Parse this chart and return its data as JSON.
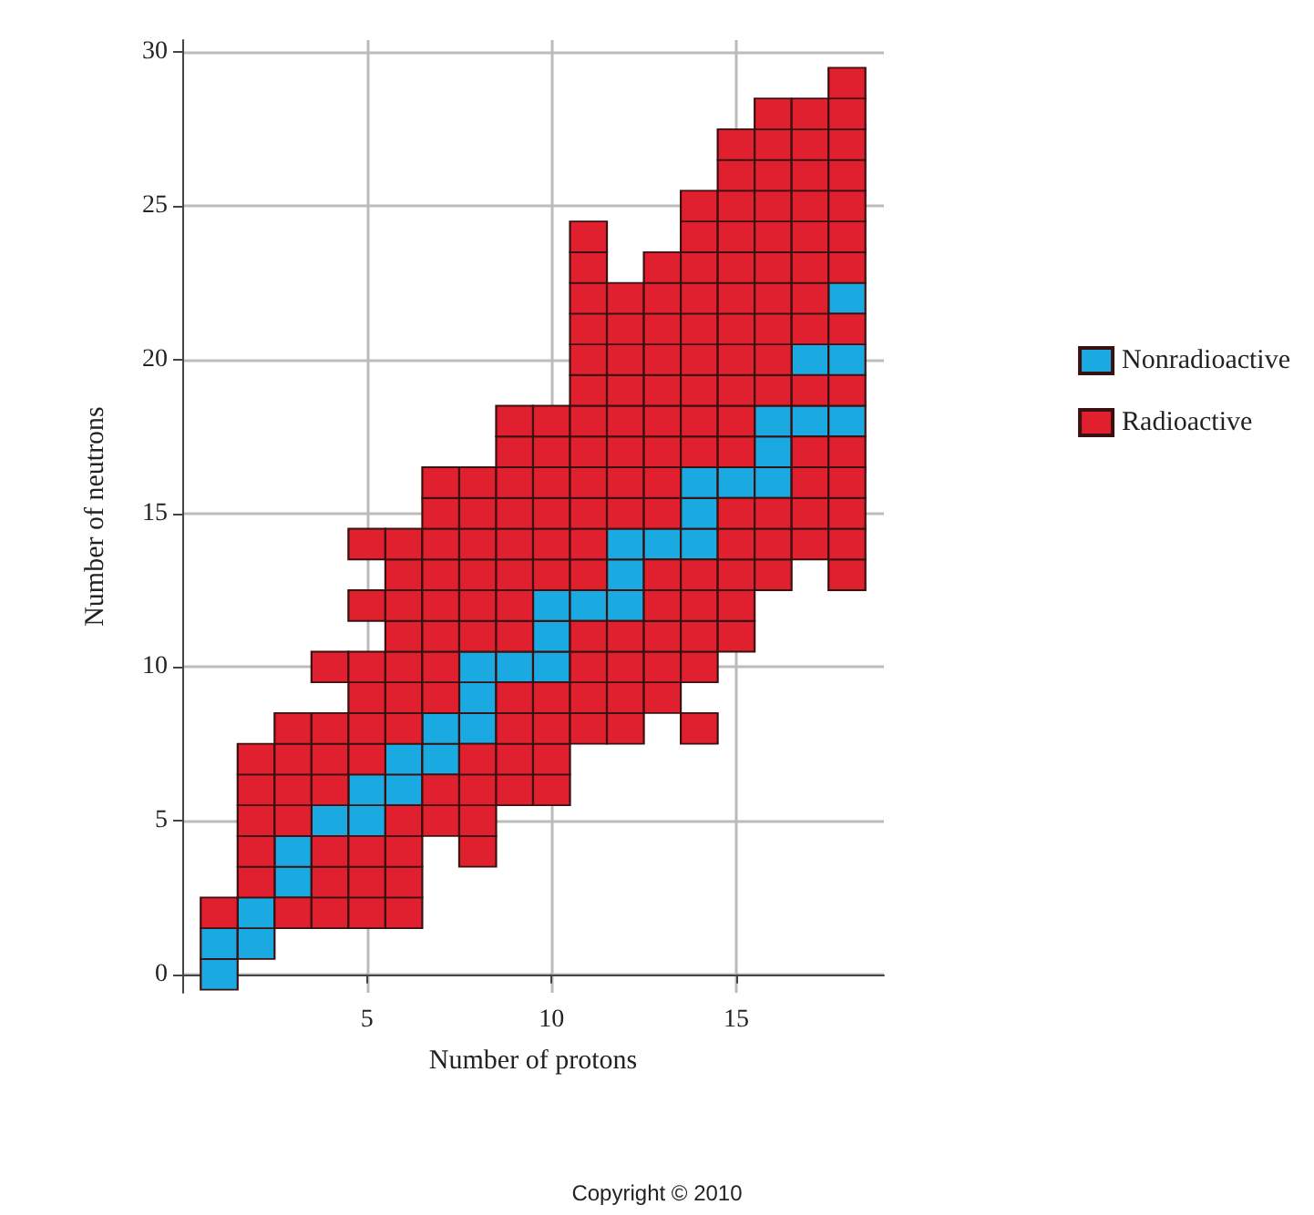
{
  "chart_data": {
    "type": "scatter",
    "xlabel": "Number of protons",
    "ylabel": "Number of neutrons",
    "xlim": [
      0,
      19
    ],
    "ylim": [
      -0.6,
      30.4
    ],
    "xticks": [
      5,
      10,
      15
    ],
    "yticks": [
      0,
      5,
      10,
      15,
      20,
      25,
      30
    ],
    "grid": true,
    "legend": "right",
    "marker": "square",
    "annotations": [
      "Copyright © 2010"
    ],
    "series": [
      {
        "name": "Nonradioactive",
        "color": "#1aa9e0",
        "x": [
          1,
          1,
          2,
          2,
          3,
          3,
          4,
          5,
          5,
          6,
          6,
          7,
          7,
          8,
          8,
          8,
          9,
          10,
          10,
          10,
          11,
          12,
          12,
          12,
          13,
          14,
          14,
          14,
          15,
          16,
          16,
          16,
          17,
          17,
          18,
          18,
          18
        ],
        "values": [
          0,
          1,
          1,
          2,
          3,
          4,
          5,
          5,
          6,
          6,
          7,
          7,
          8,
          8,
          9,
          10,
          10,
          10,
          11,
          12,
          12,
          12,
          13,
          14,
          14,
          14,
          15,
          16,
          16,
          16,
          17,
          18,
          18,
          20,
          18,
          20,
          22
        ]
      },
      {
        "name": "Radioactive",
        "color": "#e0202e",
        "x": [
          1,
          2,
          2,
          2,
          2,
          2,
          3,
          3,
          3,
          3,
          3,
          4,
          4,
          4,
          4,
          4,
          4,
          4,
          5,
          5,
          5,
          5,
          5,
          5,
          5,
          5,
          5,
          6,
          6,
          6,
          6,
          6,
          6,
          6,
          6,
          6,
          6,
          6,
          7,
          7,
          7,
          7,
          7,
          7,
          7,
          7,
          7,
          7,
          8,
          8,
          8,
          8,
          8,
          8,
          8,
          8,
          8,
          8,
          9,
          9,
          9,
          9,
          9,
          9,
          9,
          9,
          9,
          9,
          9,
          9,
          10,
          10,
          10,
          10,
          10,
          10,
          10,
          10,
          10,
          10,
          11,
          11,
          11,
          11,
          11,
          11,
          11,
          11,
          11,
          11,
          11,
          11,
          11,
          11,
          11,
          11,
          12,
          12,
          12,
          12,
          12,
          12,
          12,
          12,
          12,
          12,
          12,
          12,
          13,
          13,
          13,
          13,
          13,
          13,
          13,
          13,
          13,
          13,
          13,
          13,
          13,
          13,
          14,
          14,
          14,
          14,
          14,
          14,
          14,
          14,
          14,
          14,
          14,
          14,
          14,
          14,
          15,
          15,
          15,
          15,
          15,
          15,
          15,
          15,
          15,
          15,
          15,
          15,
          15,
          15,
          15,
          15,
          16,
          16,
          16,
          16,
          16,
          16,
          16,
          16,
          16,
          16,
          16,
          16,
          16,
          17,
          17,
          17,
          17,
          17,
          17,
          17,
          17,
          17,
          17,
          17,
          17,
          17,
          18,
          18,
          18,
          18,
          18,
          18,
          18,
          18,
          18,
          18,
          18,
          18,
          18,
          18
        ],
        "values": [
          2,
          3,
          4,
          5,
          6,
          7,
          2,
          5,
          6,
          7,
          8,
          2,
          3,
          4,
          6,
          7,
          8,
          10,
          2,
          3,
          4,
          7,
          8,
          9,
          10,
          12,
          14,
          2,
          3,
          4,
          5,
          8,
          9,
          10,
          11,
          12,
          13,
          14,
          5,
          6,
          9,
          10,
          11,
          12,
          13,
          14,
          15,
          16,
          4,
          5,
          6,
          7,
          11,
          12,
          13,
          14,
          15,
          16,
          6,
          7,
          8,
          9,
          11,
          12,
          13,
          14,
          15,
          16,
          17,
          18,
          6,
          7,
          8,
          9,
          13,
          14,
          15,
          16,
          17,
          18,
          8,
          9,
          10,
          11,
          13,
          14,
          15,
          16,
          17,
          18,
          19,
          20,
          21,
          22,
          23,
          24,
          8,
          9,
          10,
          11,
          15,
          16,
          17,
          18,
          19,
          20,
          21,
          22,
          9,
          10,
          11,
          12,
          13,
          15,
          16,
          17,
          18,
          19,
          20,
          21,
          22,
          23,
          8,
          10,
          11,
          12,
          13,
          17,
          18,
          19,
          20,
          21,
          22,
          23,
          24,
          25,
          11,
          12,
          13,
          14,
          15,
          17,
          18,
          19,
          20,
          21,
          22,
          23,
          24,
          25,
          26,
          27,
          13,
          14,
          15,
          19,
          20,
          21,
          22,
          23,
          24,
          25,
          26,
          27,
          28,
          14,
          15,
          16,
          17,
          19,
          21,
          22,
          23,
          24,
          25,
          26,
          27,
          28,
          13,
          14,
          15,
          16,
          17,
          19,
          21,
          23,
          24,
          25,
          26,
          27,
          28,
          29
        ]
      }
    ]
  }
}
